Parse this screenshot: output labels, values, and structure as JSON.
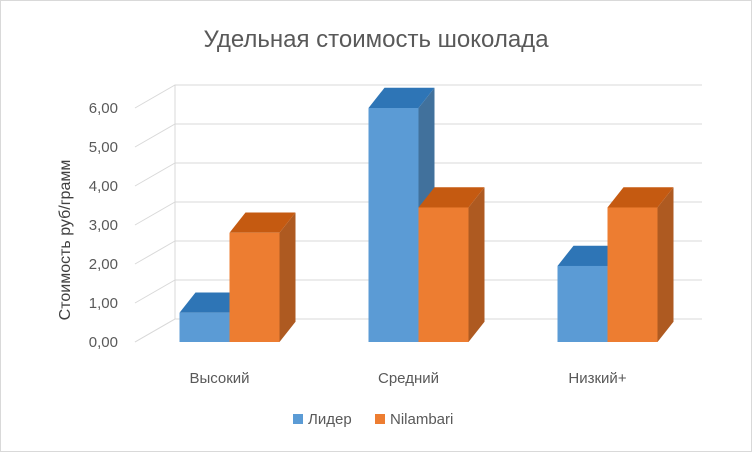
{
  "chart_data": {
    "type": "bar",
    "title": "Удельная стоимость шоколада",
    "xlabel": "",
    "ylabel": "Стоимость руб/грамм",
    "categories": [
      "Высокий",
      "Средний",
      "Низкий+"
    ],
    "series": [
      {
        "name": "Лидер",
        "values": [
          0.75,
          6.0,
          1.95
        ],
        "color": "#5b9bd5",
        "side_color": "#41719c",
        "top_color": "#2e75b6"
      },
      {
        "name": "Nilambari",
        "values": [
          2.8,
          3.45,
          3.45
        ],
        "color": "#ed7d31",
        "side_color": "#ae5a21",
        "top_color": "#c55a11"
      }
    ],
    "ylim": [
      0,
      6
    ],
    "yticks": [
      "0,00",
      "1,00",
      "2,00",
      "3,00",
      "4,00",
      "5,00",
      "6,00"
    ],
    "grid": true,
    "legend_position": "bottom",
    "style": "3d-clustered-column"
  }
}
